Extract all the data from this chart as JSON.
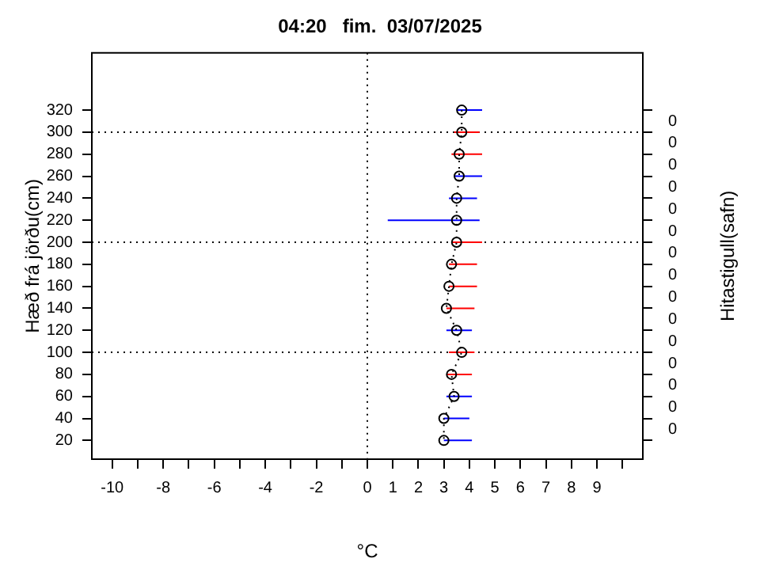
{
  "chart_data": {
    "type": "line",
    "orientation": "horizontal",
    "title": "04:20   fim.  03/07/2025",
    "xlabel": "°C",
    "ylabel": "Hæð frá jörðu(cm)",
    "y2label": "Hitastigull(safn)",
    "x": [
      320,
      300,
      280,
      260,
      240,
      220,
      200,
      180,
      160,
      140,
      120,
      100,
      80,
      60,
      40,
      20
    ],
    "series": [
      {
        "color": "#000000",
        "values": [
          3.7,
          3.7,
          3.6,
          3.6,
          3.5,
          3.5,
          3.5,
          3.3,
          3.2,
          3.1,
          3.5,
          3.7,
          3.3,
          3.4,
          3.0,
          3.0
        ],
        "errors": [
          [
            3.5,
            4.5
          ],
          [
            3.4,
            4.4
          ],
          [
            3.3,
            4.5
          ],
          [
            3.4,
            4.5
          ],
          [
            3.2,
            4.3
          ],
          [
            0.8,
            4.4
          ],
          [
            3.3,
            4.5
          ],
          [
            3.2,
            4.3
          ],
          [
            3.2,
            4.3
          ],
          [
            3.1,
            4.2
          ],
          [
            3.1,
            4.1
          ],
          [
            3.2,
            4.2
          ],
          [
            3.1,
            4.1
          ],
          [
            3.1,
            4.1
          ],
          [
            3.0,
            4.0
          ],
          [
            3.0,
            4.1
          ]
        ],
        "colors": [
          "#0000ff",
          "#ff0000",
          "#ff0000",
          "#0000ff",
          "#0000ff",
          "#0000ff",
          "#ff0000",
          "#ff0000",
          "#ff0000",
          "#ff0000",
          "#0000ff",
          "#ff0000",
          "#ff0000",
          "#0000ff",
          "#0000ff",
          "#0000ff"
        ]
      }
    ],
    "marker": "circle",
    "line_style": "dotted",
    "grid": false,
    "legend": false,
    "xlim": [
      -10.8,
      10.8
    ],
    "xticks": [
      -10,
      {
        "value": -9,
        "label": null
      },
      -8,
      {
        "value": -7,
        "label": null
      },
      -6,
      {
        "value": -5,
        "label": null
      },
      -4,
      {
        "value": -3,
        "label": null
      },
      -2,
      {
        "value": -1,
        "label": null
      },
      0,
      1,
      2,
      3,
      4,
      5,
      6,
      7,
      8,
      9,
      {
        "value": 10,
        "label": null
      }
    ],
    "ylim": [
      3,
      372
    ],
    "yticks": [
      20,
      40,
      60,
      80,
      100,
      120,
      140,
      160,
      180,
      200,
      220,
      240,
      260,
      280,
      300,
      320
    ],
    "annotations": [
      "0",
      "0",
      "0",
      "0",
      "0",
      "0",
      "0",
      "0",
      "0",
      "0",
      "0",
      "0",
      "0",
      "0",
      "0"
    ],
    "ref_lines": [
      {
        "axis": "x",
        "value": 0,
        "line_style": "dotted"
      },
      {
        "axis": "y",
        "value": 100,
        "line_style": "dotted"
      },
      {
        "axis": "y",
        "value": 200,
        "line_style": "dotted"
      },
      {
        "axis": "y",
        "value": 300,
        "line_style": "dotted"
      }
    ]
  }
}
